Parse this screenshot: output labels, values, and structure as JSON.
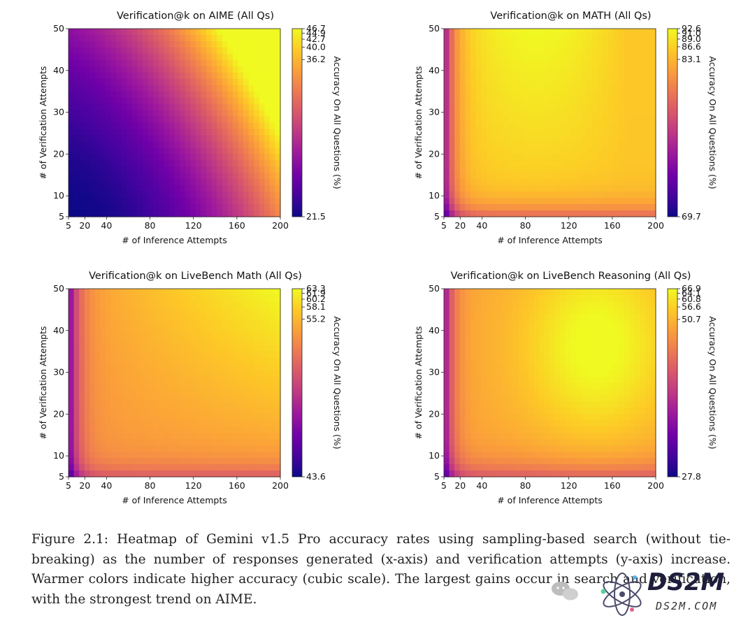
{
  "figure": {
    "caption": "Figure 2.1: Heatmap of Gemini v1.5 Pro accuracy rates using sampling-based search (without tie-breaking) as the number of responses generated (x-axis) and verification attempts (y-axis) increase. Warmer colors indicate higher accuracy (cubic scale). The largest gains occur in search and verification, with the strongest trend on AIME."
  },
  "watermark": {
    "brand": "DS2M",
    "domain": "DS2M.COM",
    "icon": "atom-icon"
  },
  "colormap": {
    "name": "plasma",
    "stops": [
      "#0d0887",
      "#46039f",
      "#7201a8",
      "#9c179e",
      "#bd3786",
      "#d8576b",
      "#ed7953",
      "#fb9f3a",
      "#fdca26",
      "#f0f921"
    ]
  },
  "chart_data": [
    {
      "type": "heatmap",
      "title": "Verification@k on AIME (All Qs)",
      "xlabel": "# of Inference Attempts",
      "ylabel": "# of Verification Attempts",
      "colorbar_label": "Accuracy On All Questions (%)",
      "x_ticks": [
        5,
        20,
        40,
        80,
        120,
        160,
        200
      ],
      "y_ticks": [
        5,
        10,
        20,
        30,
        40,
        50
      ],
      "xlim": [
        5,
        200
      ],
      "ylim": [
        5,
        50
      ],
      "colorbar_ticks": [
        "46.7",
        "44.9",
        "42.7",
        "40.0",
        "36.2",
        "21.5"
      ],
      "value_range": [
        21.5,
        46.7
      ],
      "pattern": "corner"
    },
    {
      "type": "heatmap",
      "title": "Verification@k on MATH (All Qs)",
      "xlabel": "# of Inference Attempts",
      "ylabel": "# of Verification Attempts",
      "colorbar_label": "Accuracy On All Questions (%)",
      "x_ticks": [
        5,
        20,
        40,
        80,
        120,
        160,
        200
      ],
      "y_ticks": [
        5,
        10,
        20,
        30,
        40,
        50
      ],
      "xlim": [
        5,
        200
      ],
      "ylim": [
        5,
        50
      ],
      "colorbar_ticks": [
        "92.6",
        "91.0",
        "89.0",
        "86.6",
        "83.1",
        "69.7"
      ],
      "value_range": [
        69.7,
        92.6
      ],
      "pattern": "saturating"
    },
    {
      "type": "heatmap",
      "title": "Verification@k on LiveBench Math (All Qs)",
      "xlabel": "# of Inference Attempts",
      "ylabel": "# of Verification Attempts",
      "colorbar_label": "Accuracy On All Questions (%)",
      "x_ticks": [
        5,
        20,
        40,
        80,
        120,
        160,
        200
      ],
      "y_ticks": [
        5,
        10,
        20,
        30,
        40,
        50
      ],
      "xlim": [
        5,
        200
      ],
      "ylim": [
        5,
        50
      ],
      "colorbar_ticks": [
        "63.3",
        "61.9",
        "60.2",
        "58.1",
        "55.2",
        "43.6"
      ],
      "value_range": [
        43.6,
        63.3
      ],
      "pattern": "saturating-corner"
    },
    {
      "type": "heatmap",
      "title": "Verification@k on LiveBench Reasoning (All Qs)",
      "xlabel": "# of Inference Attempts",
      "ylabel": "# of Verification Attempts",
      "colorbar_label": "Accuracy On All Questions (%)",
      "x_ticks": [
        5,
        20,
        40,
        80,
        120,
        160,
        200
      ],
      "y_ticks": [
        5,
        10,
        20,
        30,
        40,
        50
      ],
      "xlim": [
        5,
        200
      ],
      "ylim": [
        5,
        50
      ],
      "colorbar_ticks": [
        "66.9",
        "64.1",
        "60.8",
        "56.6",
        "50.7",
        "27.8"
      ],
      "value_range": [
        27.8,
        66.9
      ],
      "pattern": "saturating-peak"
    }
  ]
}
